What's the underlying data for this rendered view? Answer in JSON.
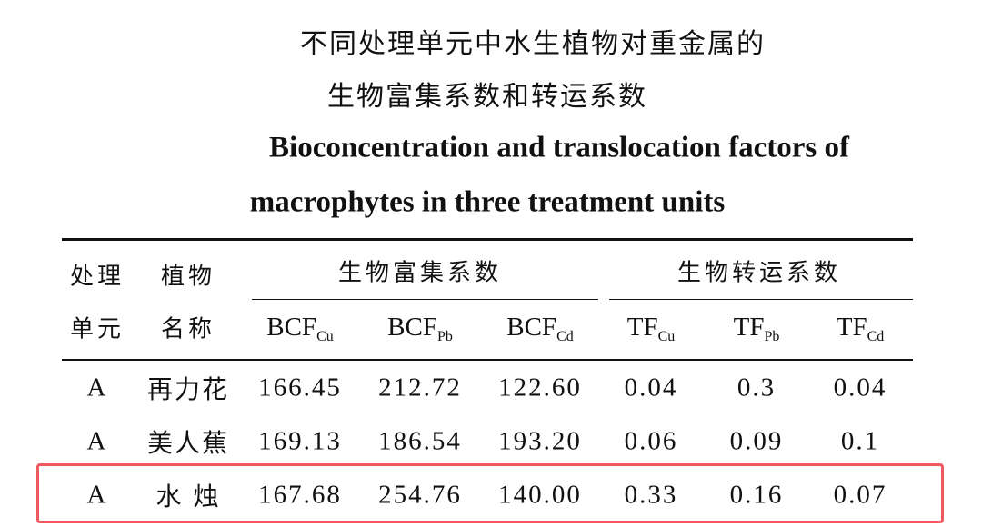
{
  "header": {
    "title_cn": [
      "不同处理单元中水生植物对重金属的",
      "生物富集系数和转运系数"
    ],
    "title_en": [
      "Bioconcentration and translocation factors of",
      "macrophytes in three treatment units"
    ]
  },
  "table": {
    "head": {
      "unit": [
        "处理",
        "单元"
      ],
      "plant": [
        "植物",
        "名称"
      ],
      "group_bcf": "生物富集系数",
      "group_tf": "生物转运系数",
      "columns": [
        {
          "main": "BCF",
          "sub": "Cu"
        },
        {
          "main": "BCF",
          "sub": "Pb"
        },
        {
          "main": "BCF",
          "sub": "Cd"
        },
        {
          "main": "TF",
          "sub": "Cu"
        },
        {
          "main": "TF",
          "sub": "Pb"
        },
        {
          "main": "TF",
          "sub": "Cd"
        }
      ]
    },
    "rows": [
      [
        "A",
        "再力花",
        "166.45",
        "212.72",
        "122.60",
        "0.04",
        "0.3",
        "0.04"
      ],
      [
        "A",
        "美人蕉",
        "169.13",
        "186.54",
        "193.20",
        "0.06",
        "0.09",
        "0.1"
      ],
      [
        "A",
        "水 烛",
        "167.68",
        "254.76",
        "140.00",
        "0.33",
        "0.16",
        "0.07"
      ]
    ]
  }
}
